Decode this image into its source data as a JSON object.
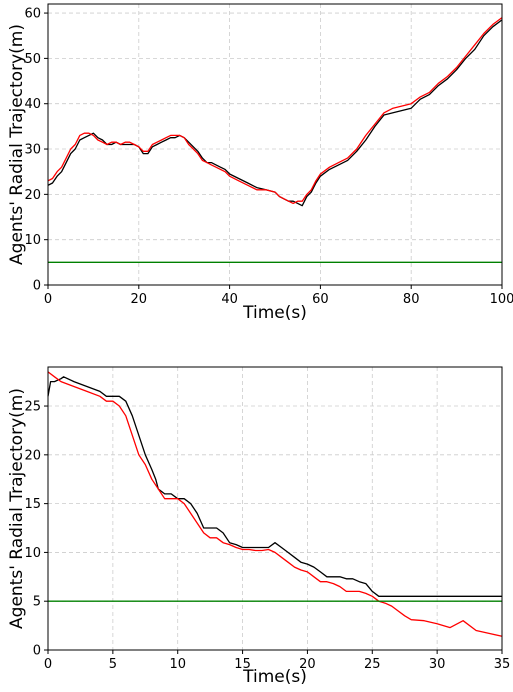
{
  "chart_data": [
    {
      "type": "line",
      "xlabel": "Time(s)",
      "ylabel": "Agents' Radial Trajectory(m)",
      "xlim": [
        0,
        100
      ],
      "ylim": [
        0,
        62
      ],
      "xticks": [
        0,
        20,
        40,
        60,
        80,
        100
      ],
      "yticks": [
        0,
        10,
        20,
        30,
        40,
        50,
        60
      ],
      "grid": true,
      "colors": {
        "black_series": "#000000",
        "red_series": "#ff0000",
        "threshold": "#008000"
      },
      "series": [
        {
          "color": "#000000",
          "x": [
            0,
            1,
            2,
            3,
            4,
            5,
            6,
            7,
            8,
            9,
            10,
            11,
            12,
            13,
            14,
            15,
            16,
            17,
            18,
            19,
            20,
            21,
            22,
            23,
            24,
            25,
            26,
            27,
            28,
            29,
            30,
            31,
            32,
            33,
            34,
            35,
            36,
            37,
            38,
            39,
            40,
            42,
            44,
            46,
            48,
            50,
            51,
            52,
            53,
            54,
            55,
            56,
            57,
            58,
            59,
            60,
            62,
            64,
            66,
            68,
            70,
            72,
            74,
            76,
            78,
            80,
            82,
            84,
            86,
            88,
            90,
            92,
            94,
            96,
            98,
            100
          ],
          "y": [
            22,
            22.5,
            24,
            25,
            27,
            29,
            30,
            32,
            32.5,
            33,
            33.5,
            32.5,
            32,
            31,
            31,
            31.5,
            31,
            31,
            31,
            31,
            30.5,
            29,
            29,
            30.5,
            31,
            31.5,
            32,
            32.5,
            32.5,
            33,
            32.5,
            31.5,
            30.5,
            29.5,
            28,
            27,
            27,
            26.5,
            26,
            25.5,
            24.5,
            23.5,
            22.5,
            21.5,
            21,
            20.5,
            19.5,
            19,
            18.5,
            18.5,
            18,
            17.5,
            19.5,
            20.5,
            22.5,
            24,
            25.5,
            26.5,
            27.5,
            29.5,
            32,
            35,
            37.5,
            38,
            38.5,
            39,
            41,
            42,
            44,
            45.5,
            47.5,
            50,
            52,
            55,
            57,
            58.5
          ]
        },
        {
          "color": "#ff0000",
          "x": [
            0,
            1,
            2,
            3,
            4,
            5,
            6,
            7,
            8,
            9,
            10,
            11,
            12,
            13,
            14,
            15,
            16,
            17,
            18,
            19,
            20,
            21,
            22,
            23,
            24,
            25,
            26,
            27,
            28,
            29,
            30,
            31,
            32,
            33,
            34,
            35,
            36,
            37,
            38,
            39,
            40,
            42,
            44,
            46,
            48,
            50,
            51,
            52,
            53,
            54,
            55,
            56,
            57,
            58,
            59,
            60,
            62,
            64,
            66,
            68,
            70,
            72,
            74,
            76,
            78,
            80,
            82,
            84,
            86,
            88,
            90,
            92,
            94,
            96,
            98,
            100
          ],
          "y": [
            23,
            23.5,
            25,
            26,
            28,
            30,
            31,
            33,
            33.5,
            33.5,
            33,
            32,
            31.5,
            31,
            31.5,
            31.5,
            31,
            31.5,
            31.5,
            31,
            30.5,
            29.5,
            29.5,
            31,
            31.5,
            32,
            32.5,
            33,
            33,
            33,
            32.5,
            31,
            30,
            29,
            27.5,
            27,
            26.5,
            26,
            25.5,
            25,
            24,
            23,
            22,
            21,
            21,
            20.5,
            19.5,
            19,
            18.5,
            18,
            18.5,
            18.5,
            20,
            21,
            23,
            24.5,
            26,
            27,
            28,
            30,
            33,
            35.5,
            38,
            39,
            39.5,
            40,
            41.5,
            42.5,
            44.5,
            46,
            48,
            50.5,
            53,
            55.5,
            57.5,
            59
          ]
        },
        {
          "color": "#008000",
          "x": [
            0,
            100
          ],
          "y": [
            5,
            5
          ]
        }
      ]
    },
    {
      "type": "line",
      "xlabel": "Time(s)",
      "ylabel": "Agents' Radial Trajectory(m)",
      "xlim": [
        0,
        35
      ],
      "ylim": [
        0,
        29
      ],
      "xticks": [
        0,
        5,
        10,
        15,
        20,
        25,
        30,
        35
      ],
      "yticks": [
        0,
        5,
        10,
        15,
        20,
        25
      ],
      "grid": true,
      "colors": {
        "black_series": "#000000",
        "red_series": "#ff0000",
        "threshold": "#008000"
      },
      "series": [
        {
          "color": "#000000",
          "x": [
            0,
            0.2,
            0.5,
            1,
            1.2,
            2,
            3,
            4,
            4.5,
            5,
            5.5,
            6,
            6.5,
            7,
            7.5,
            8,
            8.3,
            8.5,
            9,
            9.5,
            10,
            10.5,
            11,
            11.5,
            12,
            12.5,
            13,
            13.5,
            14,
            14.5,
            15,
            15.5,
            16,
            16.5,
            17,
            17.5,
            18,
            18.5,
            19,
            19.5,
            20,
            20.5,
            21,
            21.5,
            22,
            22.5,
            23,
            23.5,
            24,
            24.5,
            25,
            25.5,
            26,
            26.5,
            27,
            28,
            30,
            32,
            34,
            35
          ],
          "y": [
            26,
            27.5,
            27.5,
            27.8,
            28,
            27.5,
            27,
            26.5,
            26,
            26,
            26,
            25.5,
            24,
            22,
            20,
            18.5,
            17.5,
            16.5,
            16,
            16,
            15.5,
            15.5,
            15,
            14,
            12.5,
            12.5,
            12.5,
            12,
            11,
            10.8,
            10.5,
            10.5,
            10.5,
            10.5,
            10.5,
            11,
            10.5,
            10,
            9.5,
            9,
            8.8,
            8.5,
            8,
            7.5,
            7.5,
            7.5,
            7.3,
            7.3,
            7,
            6.8,
            6,
            5.5,
            5.5,
            5.5,
            5.5,
            5.5,
            5.5,
            5.5,
            5.5,
            5.5
          ]
        },
        {
          "color": "#ff0000",
          "x": [
            0,
            0.5,
            1,
            2,
            3,
            4,
            4.5,
            5,
            5.5,
            6,
            6.5,
            7,
            7.5,
            8,
            8.5,
            9,
            9.5,
            10,
            10.5,
            11,
            11.5,
            12,
            12.5,
            13,
            13.5,
            14,
            14.5,
            15,
            15.5,
            16,
            16.5,
            17,
            17.5,
            18,
            18.5,
            19,
            19.5,
            20,
            20.5,
            21,
            21.5,
            22,
            22.5,
            23,
            23.5,
            24,
            24.5,
            25,
            25.5,
            26,
            26.5,
            27,
            27.5,
            28,
            29,
            30,
            31,
            32,
            33,
            34,
            35
          ],
          "y": [
            28.5,
            28,
            27.5,
            27,
            26.5,
            26,
            25.5,
            25.5,
            25,
            24,
            22,
            20,
            19,
            17.5,
            16.5,
            15.5,
            15.5,
            15.5,
            15,
            14,
            13,
            12,
            11.5,
            11.5,
            11,
            10.8,
            10.5,
            10.3,
            10.3,
            10.2,
            10.2,
            10.3,
            10,
            9.5,
            9,
            8.5,
            8.2,
            8,
            7.5,
            7,
            7,
            6.8,
            6.5,
            6,
            6,
            6,
            5.8,
            5.5,
            5,
            4.8,
            4.5,
            4,
            3.5,
            3.1,
            3,
            2.7,
            2.3,
            3,
            2,
            1.7,
            1.4
          ]
        },
        {
          "color": "#008000",
          "x": [
            0,
            35
          ],
          "y": [
            5,
            5
          ]
        }
      ]
    }
  ]
}
